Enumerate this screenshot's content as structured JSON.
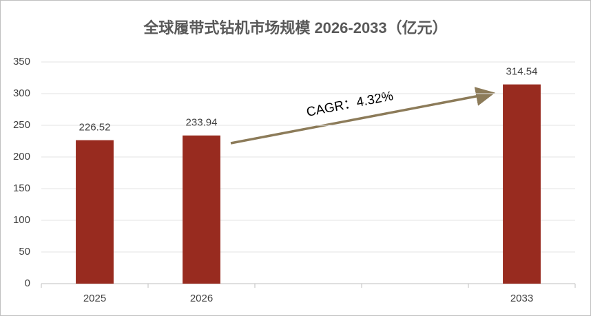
{
  "chart_data": {
    "type": "bar",
    "title": "全球履带式钻机市场规模 2026-2033（亿元）",
    "categories": [
      "2025",
      "2026",
      null,
      null,
      "2033"
    ],
    "values": [
      226.52,
      233.94,
      null,
      null,
      314.54
    ],
    "color": "#982b1f",
    "ylim": [
      0,
      350
    ],
    "yticks": [
      0,
      50,
      100,
      150,
      200,
      250,
      300,
      350
    ],
    "grid": true,
    "annotation": "CAGR：4.32%"
  }
}
